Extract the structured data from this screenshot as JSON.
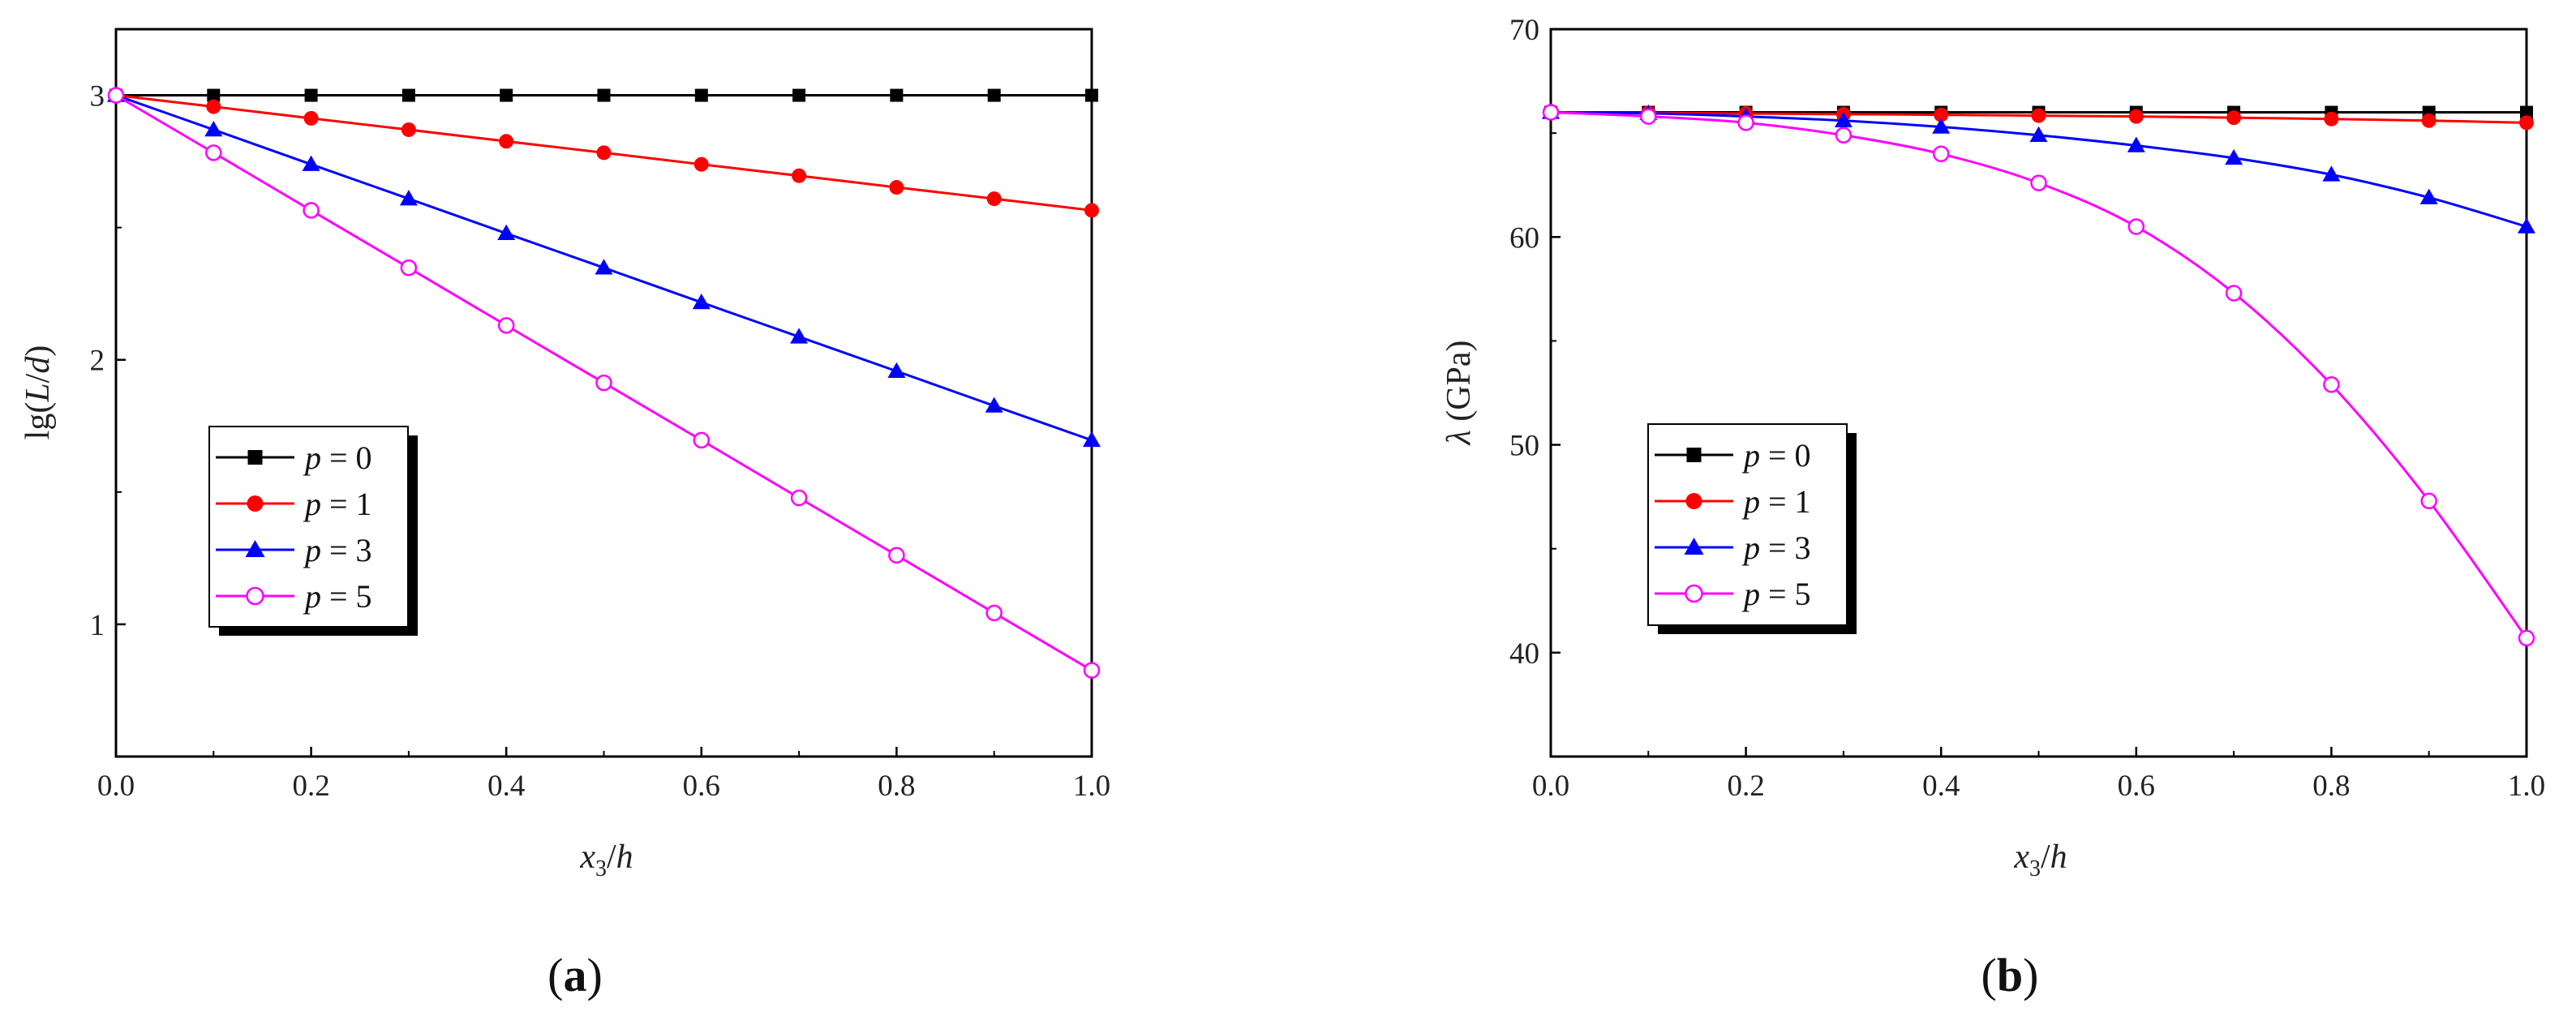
{
  "chart_data": [
    {
      "type": "line",
      "panel_label": "a",
      "xlabel": "x3/h",
      "ylabel": "lg(L/d)",
      "xlim": [
        0,
        1
      ],
      "ylim": [
        0.5,
        3.25
      ],
      "xticks": [
        "0.0",
        "0.2",
        "0.4",
        "0.6",
        "0.8",
        "1.0"
      ],
      "yticks": [
        "1",
        "2",
        "3"
      ],
      "legend_position": "lower-left",
      "x": [
        0,
        0.1,
        0.2,
        0.3,
        0.4,
        0.5,
        0.6,
        0.7,
        0.8,
        0.9,
        1.0
      ],
      "series": [
        {
          "name": "p = 0",
          "p": "0",
          "color": "#000000",
          "marker": "square",
          "values": [
            3,
            3,
            3,
            3,
            3,
            3,
            3,
            3,
            3,
            3,
            3
          ]
        },
        {
          "name": "p = 1",
          "p": "1",
          "color": "#ff0000",
          "marker": "circle",
          "values": [
            3,
            2.957,
            2.913,
            2.87,
            2.826,
            2.783,
            2.739,
            2.696,
            2.652,
            2.609,
            2.565
          ]
        },
        {
          "name": "p = 3",
          "p": "3",
          "color": "#0000ff",
          "marker": "triangle",
          "values": [
            3,
            2.87,
            2.739,
            2.609,
            2.478,
            2.348,
            2.217,
            2.087,
            1.957,
            1.826,
            1.696
          ]
        },
        {
          "name": "p = 5",
          "p": "5",
          "color": "#ff00ff",
          "marker": "open-circle",
          "values": [
            3,
            2.783,
            2.565,
            2.348,
            2.13,
            1.913,
            1.696,
            1.478,
            1.261,
            1.043,
            0.826
          ]
        }
      ]
    },
    {
      "type": "line",
      "panel_label": "b",
      "xlabel": "x3/h",
      "ylabel": "λ (GPa)",
      "xlim": [
        0,
        1
      ],
      "ylim": [
        35,
        70
      ],
      "xticks": [
        "0.0",
        "0.2",
        "0.4",
        "0.6",
        "0.8",
        "1.0"
      ],
      "yticks": [
        "40",
        "50",
        "60",
        "70"
      ],
      "legend_position": "lower-left",
      "x": [
        0,
        0.1,
        0.2,
        0.3,
        0.4,
        0.5,
        0.6,
        0.7,
        0.8,
        0.9,
        1.0
      ],
      "series": [
        {
          "name": "p = 0",
          "p": "0",
          "color": "#000000",
          "marker": "square",
          "values": [
            66,
            66,
            66,
            66,
            66,
            66,
            66,
            66,
            66,
            66,
            66
          ]
        },
        {
          "name": "p = 1",
          "p": "1",
          "color": "#ff0000",
          "marker": "circle",
          "values": [
            66,
            65.97,
            65.94,
            65.91,
            65.88,
            65.84,
            65.8,
            65.74,
            65.68,
            65.6,
            65.5
          ]
        },
        {
          "name": "p = 3",
          "p": "3",
          "color": "#0000ff",
          "marker": "triangle",
          "values": [
            66,
            65.95,
            65.8,
            65.6,
            65.3,
            64.9,
            64.4,
            63.8,
            63.0,
            61.9,
            60.5
          ]
        },
        {
          "name": "p = 5",
          "p": "5",
          "color": "#ff00ff",
          "marker": "open-circle",
          "values": [
            66,
            65.8,
            65.5,
            64.9,
            64.0,
            62.6,
            60.5,
            57.3,
            52.9,
            47.3,
            40.7
          ]
        }
      ]
    }
  ]
}
